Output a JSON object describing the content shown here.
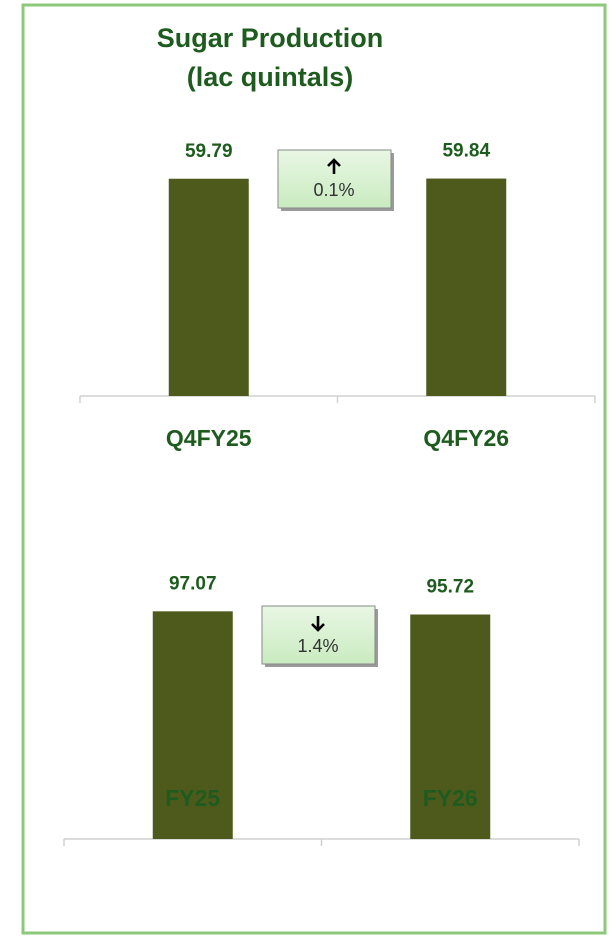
{
  "chart_data": [
    {
      "type": "bar",
      "title": "Sugar Production",
      "subtitle": "(lac quintals)",
      "categories": [
        "Q4FY25",
        "Q4FY26"
      ],
      "values": [
        59.79,
        59.84
      ],
      "color": "#4e5a1c",
      "ylim": [
        0,
        71
      ],
      "change": {
        "label": "0.1%",
        "direction": "up"
      }
    },
    {
      "type": "bar",
      "categories": [
        "FY25",
        "FY26"
      ],
      "values": [
        97.07,
        95.72
      ],
      "color": "#4e5a1c",
      "ylim": [
        0,
        110
      ],
      "change": {
        "label": "1.4%",
        "direction": "down"
      }
    }
  ]
}
